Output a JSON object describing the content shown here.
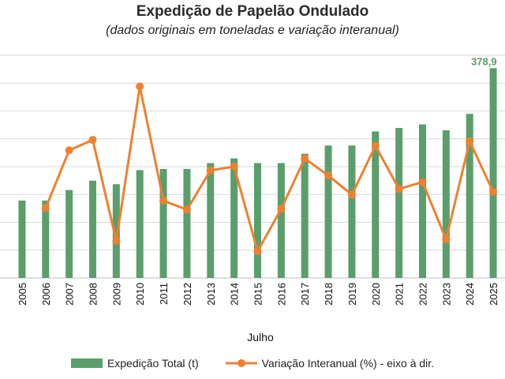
{
  "chart_data": {
    "type": "bar",
    "title": "Expedição de Papelão Ondulado",
    "subtitle": "(dados originais em toneladas e variação interanual)",
    "xlabel": "Julho",
    "categories": [
      "2005",
      "2006",
      "2007",
      "2008",
      "2009",
      "2010",
      "2011",
      "2012",
      "2013",
      "2014",
      "2015",
      "2016",
      "2017",
      "2018",
      "2019",
      "2020",
      "2021",
      "2022",
      "2023",
      "2024",
      "2025"
    ],
    "series": [
      {
        "name": "Expedição Total (t)",
        "type": "bar",
        "axis": "left",
        "color": "#5a9e6c",
        "values": [
          266,
          266,
          275,
          283,
          280,
          292,
          293,
          293,
          298,
          302,
          298,
          298,
          306,
          313,
          313,
          325,
          328,
          331,
          326,
          340,
          379
        ]
      },
      {
        "name": "Variação Interanual (%) - eixo à dir.",
        "type": "line",
        "axis": "right",
        "color": "#ee8030",
        "values": [
          null,
          1.4,
          9.2,
          10.6,
          -3.0,
          17.8,
          2.4,
          1.2,
          6.5,
          7.0,
          -4.4,
          1.3,
          8.1,
          5.8,
          3.2,
          9.8,
          4.0,
          4.9,
          -2.8,
          10.4,
          3.6
        ]
      }
    ],
    "ylim_left": [
      200,
      390
    ],
    "ylim_right": [
      -8,
      22
    ],
    "data_labels": [
      {
        "category": "2025",
        "text": "378,9"
      }
    ],
    "grid": true,
    "legend": "bottom"
  }
}
